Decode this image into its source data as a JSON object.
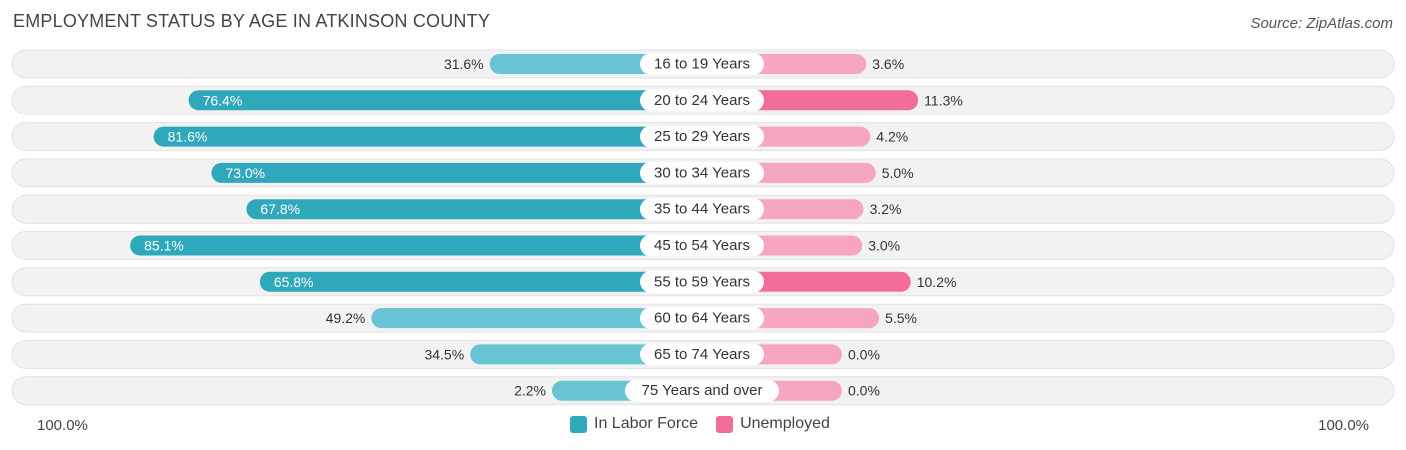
{
  "title": "EMPLOYMENT STATUS BY AGE IN ATKINSON COUNTY",
  "source": "Source: ZipAtlas.com",
  "axis": {
    "left_label": "100.0%",
    "right_label": "100.0%"
  },
  "legend": [
    {
      "label": "In Labor Force",
      "color": "#2fa8bb"
    },
    {
      "label": "Unemployed",
      "color": "#f06e98"
    }
  ],
  "chart_data": {
    "type": "bar",
    "orientation": "diverging-horizontal",
    "categories": [
      "16 to 19 Years",
      "20 to 24 Years",
      "25 to 29 Years",
      "30 to 34 Years",
      "35 to 44 Years",
      "45 to 54 Years",
      "55 to 59 Years",
      "60 to 64 Years",
      "65 to 74 Years",
      "75 Years and over"
    ],
    "series": [
      {
        "name": "In Labor Force",
        "color": "#2fa8bb",
        "light_color": "#68c4d2",
        "values": [
          31.6,
          76.4,
          81.6,
          73.0,
          67.8,
          85.1,
          65.8,
          49.2,
          34.5,
          2.2
        ],
        "labels": [
          "31.6%",
          "76.4%",
          "81.6%",
          "73.0%",
          "67.8%",
          "85.1%",
          "65.8%",
          "49.2%",
          "34.5%",
          "2.2%"
        ]
      },
      {
        "name": "Unemployed",
        "color": "#f06e98",
        "light_color": "#f7a6c0",
        "values": [
          3.6,
          11.3,
          4.2,
          5.0,
          3.2,
          3.0,
          10.2,
          5.5,
          0.0,
          0.0
        ],
        "labels": [
          "3.6%",
          "11.3%",
          "4.2%",
          "5.0%",
          "3.2%",
          "3.0%",
          "10.2%",
          "5.5%",
          "0.0%",
          "0.0%"
        ]
      }
    ],
    "xlim_left": [
      0,
      100
    ],
    "xlim_right": [
      0,
      100
    ],
    "grid": false,
    "legend_position": "bottom-center"
  }
}
